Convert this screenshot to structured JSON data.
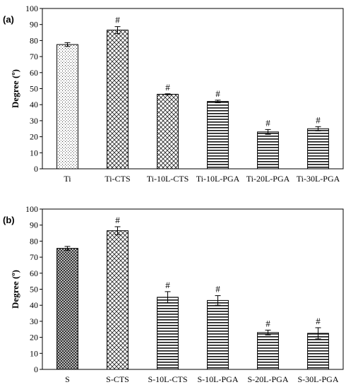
{
  "chart_data": [
    {
      "type": "bar",
      "panel_label": "(a)",
      "ylabel": "Degree (º)",
      "ylim": [
        0,
        100
      ],
      "yticks": [
        0,
        10,
        20,
        30,
        40,
        50,
        60,
        70,
        80,
        90,
        100
      ],
      "categories": [
        "Ti",
        "Ti-CTS",
        "Ti-10L-CTS",
        "Ti-10L-PGA",
        "Ti-20L-PGA",
        "Ti-30L-PGA"
      ],
      "values": [
        77.5,
        86.5,
        46.5,
        42.0,
        23.0,
        25.0
      ],
      "errors": [
        1.2,
        2.2,
        0.3,
        0.8,
        1.5,
        1.3
      ],
      "markers": [
        "",
        "#",
        "#",
        "#",
        "#",
        "#"
      ],
      "patterns": [
        "dots",
        "crosshatch",
        "crosshatch",
        "hlines",
        "hlines",
        "hlines"
      ]
    },
    {
      "type": "bar",
      "panel_label": "(b)",
      "ylabel": "Degree (º)",
      "ylim": [
        0,
        100
      ],
      "yticks": [
        0,
        10,
        20,
        30,
        40,
        50,
        60,
        70,
        80,
        90,
        100
      ],
      "categories": [
        "S",
        "S-CTS",
        "S-10L-CTS",
        "S-10L-PGA",
        "S-20L-PGA",
        "S-30L-PGA"
      ],
      "values": [
        75.5,
        86.5,
        45.0,
        43.0,
        23.0,
        22.5
      ],
      "errors": [
        1.2,
        2.5,
        3.5,
        3.0,
        1.5,
        3.5
      ],
      "markers": [
        "",
        "#",
        "#",
        "#",
        "#",
        "#"
      ],
      "patterns": [
        "checker",
        "crosshatch",
        "hlines",
        "hlines",
        "hlines",
        "hlines"
      ]
    }
  ]
}
